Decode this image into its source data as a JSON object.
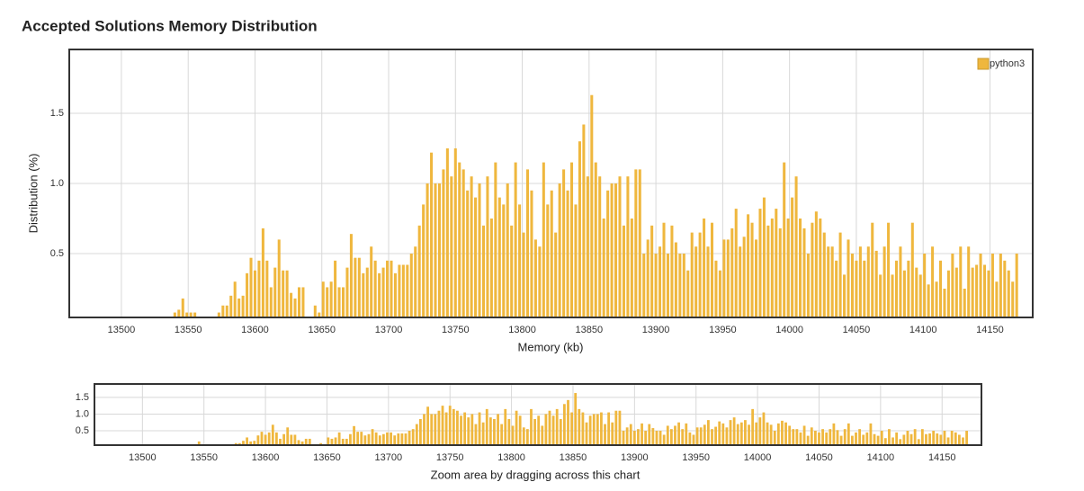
{
  "chart_data": {
    "type": "bar",
    "title": "Accepted Solutions Memory Distribution",
    "x_label": "Memory (kb)",
    "y_label": "Distribution (%)",
    "legend": "top-right",
    "grid": true,
    "x": [
      13471,
      13474,
      13477,
      13480,
      13483,
      13486,
      13489,
      13492,
      13495,
      13498,
      13501,
      13504,
      13507,
      13510,
      13513,
      13516,
      13519,
      13522,
      13525,
      13528,
      13531,
      13534,
      13537,
      13540,
      13543,
      13546,
      13549,
      13552,
      13555,
      13558,
      13561,
      13564,
      13567,
      13570,
      13573,
      13576,
      13579,
      13582,
      13585,
      13588,
      13591,
      13594,
      13597,
      13600,
      13603,
      13606,
      13609,
      13612,
      13615,
      13618,
      13621,
      13624,
      13627,
      13630,
      13633,
      13636,
      13639,
      13642,
      13645,
      13648,
      13651,
      13654,
      13657,
      13660,
      13663,
      13666,
      13669,
      13672,
      13675,
      13678,
      13681,
      13684,
      13687,
      13690,
      13693,
      13696,
      13699,
      13702,
      13705,
      13708,
      13711,
      13714,
      13717,
      13720,
      13723,
      13726,
      13729,
      13732,
      13735,
      13738,
      13741,
      13744,
      13747,
      13750,
      13753,
      13756,
      13759,
      13762,
      13765,
      13768,
      13771,
      13774,
      13777,
      13780,
      13783,
      13786,
      13789,
      13792,
      13795,
      13798,
      13801,
      13804,
      13807,
      13810,
      13813,
      13816,
      13819,
      13822,
      13825,
      13828,
      13831,
      13834,
      13837,
      13840,
      13843,
      13846,
      13849,
      13852,
      13855,
      13858,
      13861,
      13864,
      13867,
      13870,
      13873,
      13876,
      13879,
      13882,
      13885,
      13888,
      13891,
      13894,
      13897,
      13900,
      13903,
      13906,
      13909,
      13912,
      13915,
      13918,
      13921,
      13924,
      13927,
      13930,
      13933,
      13936,
      13939,
      13942,
      13945,
      13948,
      13951,
      13954,
      13957,
      13960,
      13963,
      13966,
      13969,
      13972,
      13975,
      13978,
      13981,
      13984,
      13987,
      13990,
      13993,
      13996,
      13999,
      14002,
      14005,
      14008,
      14011,
      14014,
      14017,
      14020,
      14023,
      14026,
      14029,
      14032,
      14035,
      14038,
      14041,
      14044,
      14047,
      14050,
      14053,
      14056,
      14059,
      14062,
      14065,
      14068,
      14071,
      14074,
      14077,
      14080,
      14083,
      14086,
      14089,
      14092,
      14095,
      14098,
      14101,
      14104,
      14107,
      14110,
      14113,
      14116,
      14119,
      14122,
      14125,
      14128,
      14131,
      14134,
      14137,
      14140,
      14143,
      14146,
      14149,
      14152,
      14155,
      14158,
      14161,
      14164,
      14167,
      14170
    ],
    "series": [
      {
        "name": "python3",
        "color": "#efb73e",
        "values": [
          0.04,
          null,
          null,
          null,
          null,
          null,
          null,
          null,
          null,
          null,
          0.04,
          null,
          null,
          0.04,
          null,
          null,
          null,
          null,
          null,
          null,
          0.04,
          0.04,
          0.04,
          0.08,
          0.1,
          0.18,
          0.08,
          0.08,
          0.08,
          0.04,
          null,
          null,
          null,
          null,
          0.08,
          0.13,
          0.13,
          0.2,
          0.3,
          0.18,
          0.2,
          0.36,
          0.47,
          0.38,
          0.45,
          0.68,
          0.45,
          0.26,
          0.4,
          0.6,
          0.38,
          0.38,
          0.22,
          0.18,
          0.26,
          0.26,
          null,
          null,
          0.13,
          0.08,
          0.3,
          0.26,
          0.3,
          0.45,
          0.26,
          0.26,
          0.4,
          0.64,
          0.47,
          0.47,
          0.36,
          0.4,
          0.55,
          0.45,
          0.36,
          0.4,
          0.45,
          0.45,
          0.36,
          0.42,
          0.42,
          0.42,
          0.5,
          0.55,
          0.7,
          0.85,
          1.0,
          1.22,
          1.0,
          1.0,
          1.1,
          1.25,
          1.05,
          1.25,
          1.15,
          1.1,
          0.95,
          1.05,
          0.9,
          1.0,
          0.7,
          1.05,
          0.75,
          1.15,
          0.9,
          0.85,
          1.0,
          0.7,
          1.15,
          0.85,
          0.65,
          1.1,
          0.95,
          0.6,
          0.55,
          1.15,
          0.85,
          0.95,
          0.65,
          1.0,
          1.1,
          0.95,
          1.15,
          0.85,
          1.3,
          1.42,
          1.05,
          1.63,
          1.15,
          1.05,
          0.75,
          0.95,
          1.0,
          1.0,
          1.05,
          0.7,
          1.05,
          0.75,
          1.1,
          1.1,
          0.5,
          0.6,
          0.7,
          0.5,
          0.55,
          0.72,
          0.5,
          0.7,
          0.58,
          0.5,
          0.5,
          0.38,
          0.65,
          0.55,
          0.65,
          0.75,
          0.55,
          0.72,
          0.45,
          0.38,
          0.6,
          0.6,
          0.68,
          0.82,
          0.55,
          0.62,
          0.78,
          0.72,
          0.6,
          0.82,
          0.9,
          0.7,
          0.75,
          0.82,
          0.68,
          1.15,
          0.75,
          0.9,
          1.05,
          0.75,
          0.68,
          0.5,
          0.72,
          0.8,
          0.75,
          0.65,
          0.55,
          0.55,
          0.45,
          0.65,
          0.35,
          0.6,
          0.5,
          0.45,
          0.55,
          0.45,
          0.55,
          0.72,
          0.52,
          0.35,
          0.55,
          0.72,
          0.35,
          0.45,
          0.55,
          0.38,
          0.45,
          0.72,
          0.4,
          0.35,
          0.5,
          0.28,
          0.55,
          0.3,
          0.45,
          0.25,
          0.38,
          0.5,
          0.4,
          0.55,
          0.25,
          0.55,
          0.4,
          0.42,
          0.5,
          0.42,
          0.38,
          0.5,
          0.3,
          0.5,
          0.45,
          0.38,
          0.3,
          0.5
        ]
      }
    ],
    "xlim": [
      13461,
      14182
    ],
    "ylim": [
      0.045,
      1.955
    ],
    "xticks": [
      13500,
      13550,
      13600,
      13650,
      13700,
      13750,
      13800,
      13850,
      13900,
      13950,
      14000,
      14050,
      14100,
      14150
    ],
    "yticks": [
      0.5,
      {
        "value": 1,
        "label": "1.0"
      },
      1.5
    ],
    "navigator": {
      "caption": "Zoom area by dragging across this chart",
      "ylim": [
        0.07,
        1.9
      ],
      "yticks": [
        0.5,
        {
          "value": 1,
          "label": "1.0"
        },
        1.5
      ]
    }
  }
}
